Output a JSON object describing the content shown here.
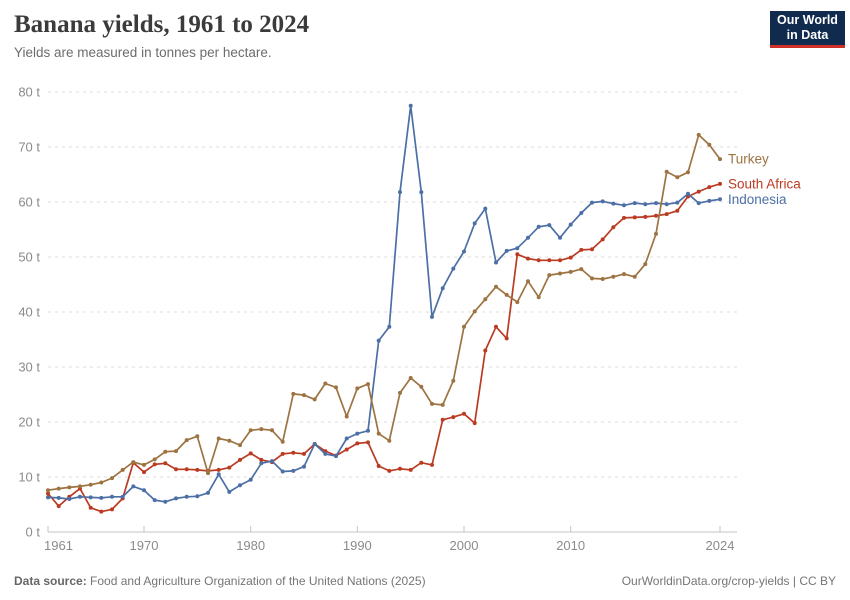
{
  "header": {
    "title": "Banana yields, 1961 to 2024",
    "subtitle": "Yields are measured in tonnes per hectare.",
    "logo": {
      "line1": "Our World",
      "line2": "in Data",
      "bg_color": "#112B4F",
      "accent_color": "#CF3129",
      "text_color": "#FFFFFF"
    }
  },
  "footer": {
    "datasource_label": "Data source:",
    "datasource_text": " Food and Agriculture Organization of the United Nations (2025)",
    "attribution": "OurWorldinData.org/crop-yields | CC BY"
  },
  "chart_data": {
    "type": "line",
    "title": "Banana yields, 1961 to 2024",
    "subtitle": "Yields are measured in tonnes per hectare.",
    "xlabel": "",
    "ylabel": "tonnes per hectare",
    "unit": " t",
    "ylim": [
      0,
      80
    ],
    "grid": "horizontal dashed",
    "legend_position": "end-of-line labels",
    "y_ticks": [
      0,
      10,
      20,
      30,
      40,
      50,
      60,
      70,
      80
    ],
    "y_tick_labels": [
      "0 t",
      "10 t",
      "20 t",
      "30 t",
      "40 t",
      "50 t",
      "60 t",
      "70 t",
      "80 t"
    ],
    "x_ticks": [
      1961,
      1970,
      1980,
      1990,
      2000,
      2010,
      2024
    ],
    "x_tick_labels": [
      "1961",
      "1970",
      "1980",
      "1990",
      "2000",
      "2010",
      "2024"
    ],
    "years": [
      1961,
      1962,
      1963,
      1964,
      1965,
      1966,
      1967,
      1968,
      1969,
      1970,
      1971,
      1972,
      1973,
      1974,
      1975,
      1976,
      1977,
      1978,
      1979,
      1980,
      1981,
      1982,
      1983,
      1984,
      1985,
      1986,
      1987,
      1988,
      1989,
      1990,
      1991,
      1992,
      1993,
      1994,
      1995,
      1996,
      1997,
      1998,
      1999,
      2000,
      2001,
      2002,
      2003,
      2004,
      2005,
      2006,
      2007,
      2008,
      2009,
      2010,
      2011,
      2012,
      2013,
      2014,
      2015,
      2016,
      2017,
      2018,
      2019,
      2020,
      2021,
      2022,
      2023,
      2024
    ],
    "series": [
      {
        "name": "Turkey",
        "color": "#9D7342",
        "values": [
          7.6,
          7.9,
          8.1,
          8.3,
          8.6,
          9.0,
          9.8,
          11.3,
          12.7,
          12.2,
          13.2,
          14.6,
          14.7,
          16.7,
          17.4,
          10.7,
          17.0,
          16.6,
          15.8,
          18.5,
          18.7,
          18.5,
          16.4,
          25.1,
          24.9,
          24.1,
          27.0,
          26.3,
          21.0,
          26.1,
          26.9,
          17.9,
          16.6,
          25.3,
          28.0,
          26.4,
          23.3,
          23.1,
          27.5,
          37.3,
          40.1,
          42.3,
          44.6,
          43.1,
          41.8,
          45.6,
          42.7,
          46.7,
          47.0,
          47.3,
          47.8,
          46.1,
          46.0,
          46.4,
          46.9,
          46.4,
          48.7,
          54.2,
          65.5,
          64.5,
          65.4,
          72.2,
          70.4,
          67.8
        ]
      },
      {
        "name": "South Africa",
        "color": "#BB3B22",
        "values": [
          7.0,
          4.7,
          6.4,
          7.9,
          4.4,
          3.7,
          4.1,
          6.1,
          12.6,
          10.9,
          12.3,
          12.5,
          11.4,
          11.4,
          11.3,
          11.1,
          11.3,
          11.7,
          13.1,
          14.3,
          13.1,
          12.7,
          14.2,
          14.4,
          14.2,
          16.0,
          14.7,
          13.9,
          15.0,
          16.1,
          16.3,
          12.0,
          11.1,
          11.5,
          11.3,
          12.6,
          12.2,
          20.4,
          20.9,
          21.5,
          19.8,
          33.0,
          37.3,
          35.2,
          50.5,
          49.7,
          49.4,
          49.4,
          49.4,
          49.9,
          51.3,
          51.4,
          53.2,
          55.4,
          57.1,
          57.2,
          57.3,
          57.5,
          57.8,
          58.4,
          61.0,
          61.9,
          62.7,
          63.3
        ]
      },
      {
        "name": "Indonesia",
        "color": "#4C6FA5",
        "values": [
          6.3,
          6.2,
          6.0,
          6.4,
          6.3,
          6.2,
          6.4,
          6.4,
          8.3,
          7.6,
          5.8,
          5.5,
          6.1,
          6.4,
          6.5,
          7.1,
          10.5,
          7.3,
          8.5,
          9.5,
          12.5,
          12.9,
          11.0,
          11.1,
          11.9,
          16.0,
          14.2,
          13.8,
          17.0,
          17.9,
          18.4,
          34.8,
          37.3,
          61.8,
          77.5,
          61.8,
          39.1,
          44.3,
          47.9,
          51.0,
          56.1,
          58.8,
          49.0,
          51.1,
          51.6,
          53.5,
          55.5,
          55.8,
          53.5,
          55.9,
          58.0,
          59.9,
          60.1,
          59.7,
          59.4,
          59.8,
          59.6,
          59.8,
          59.6,
          59.9,
          61.5,
          59.8,
          60.2,
          60.5
        ]
      }
    ]
  }
}
